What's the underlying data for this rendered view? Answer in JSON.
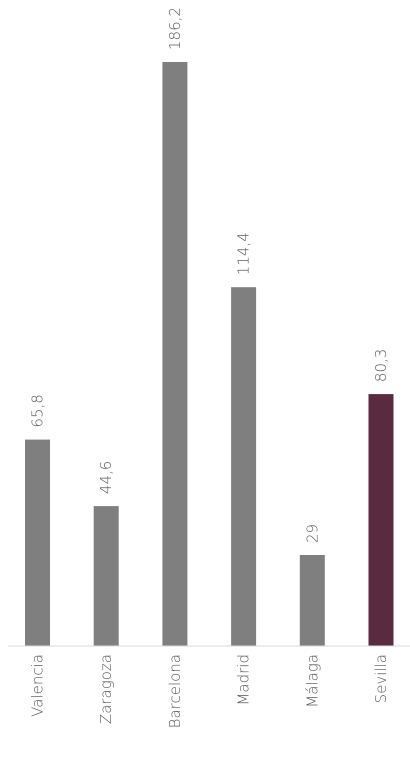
{
  "chart_data": {
    "type": "bar",
    "orientation": "vertical",
    "categories": [
      "Valencia",
      "Zaragoza",
      "Barcelona",
      "Madrid",
      "Málaga",
      "Sevilla"
    ],
    "values": [
      65.8,
      44.6,
      186.2,
      114.4,
      29,
      80.3
    ],
    "value_labels": [
      "65,8",
      "44,6",
      "186,2",
      "114,4",
      "29",
      "80,3"
    ],
    "ylim": [
      0,
      186.2
    ],
    "grid": false,
    "legend": "none",
    "bar_color": "#7f7f7f",
    "highlight_color": "#5a2a40",
    "highlight_index": 5
  }
}
